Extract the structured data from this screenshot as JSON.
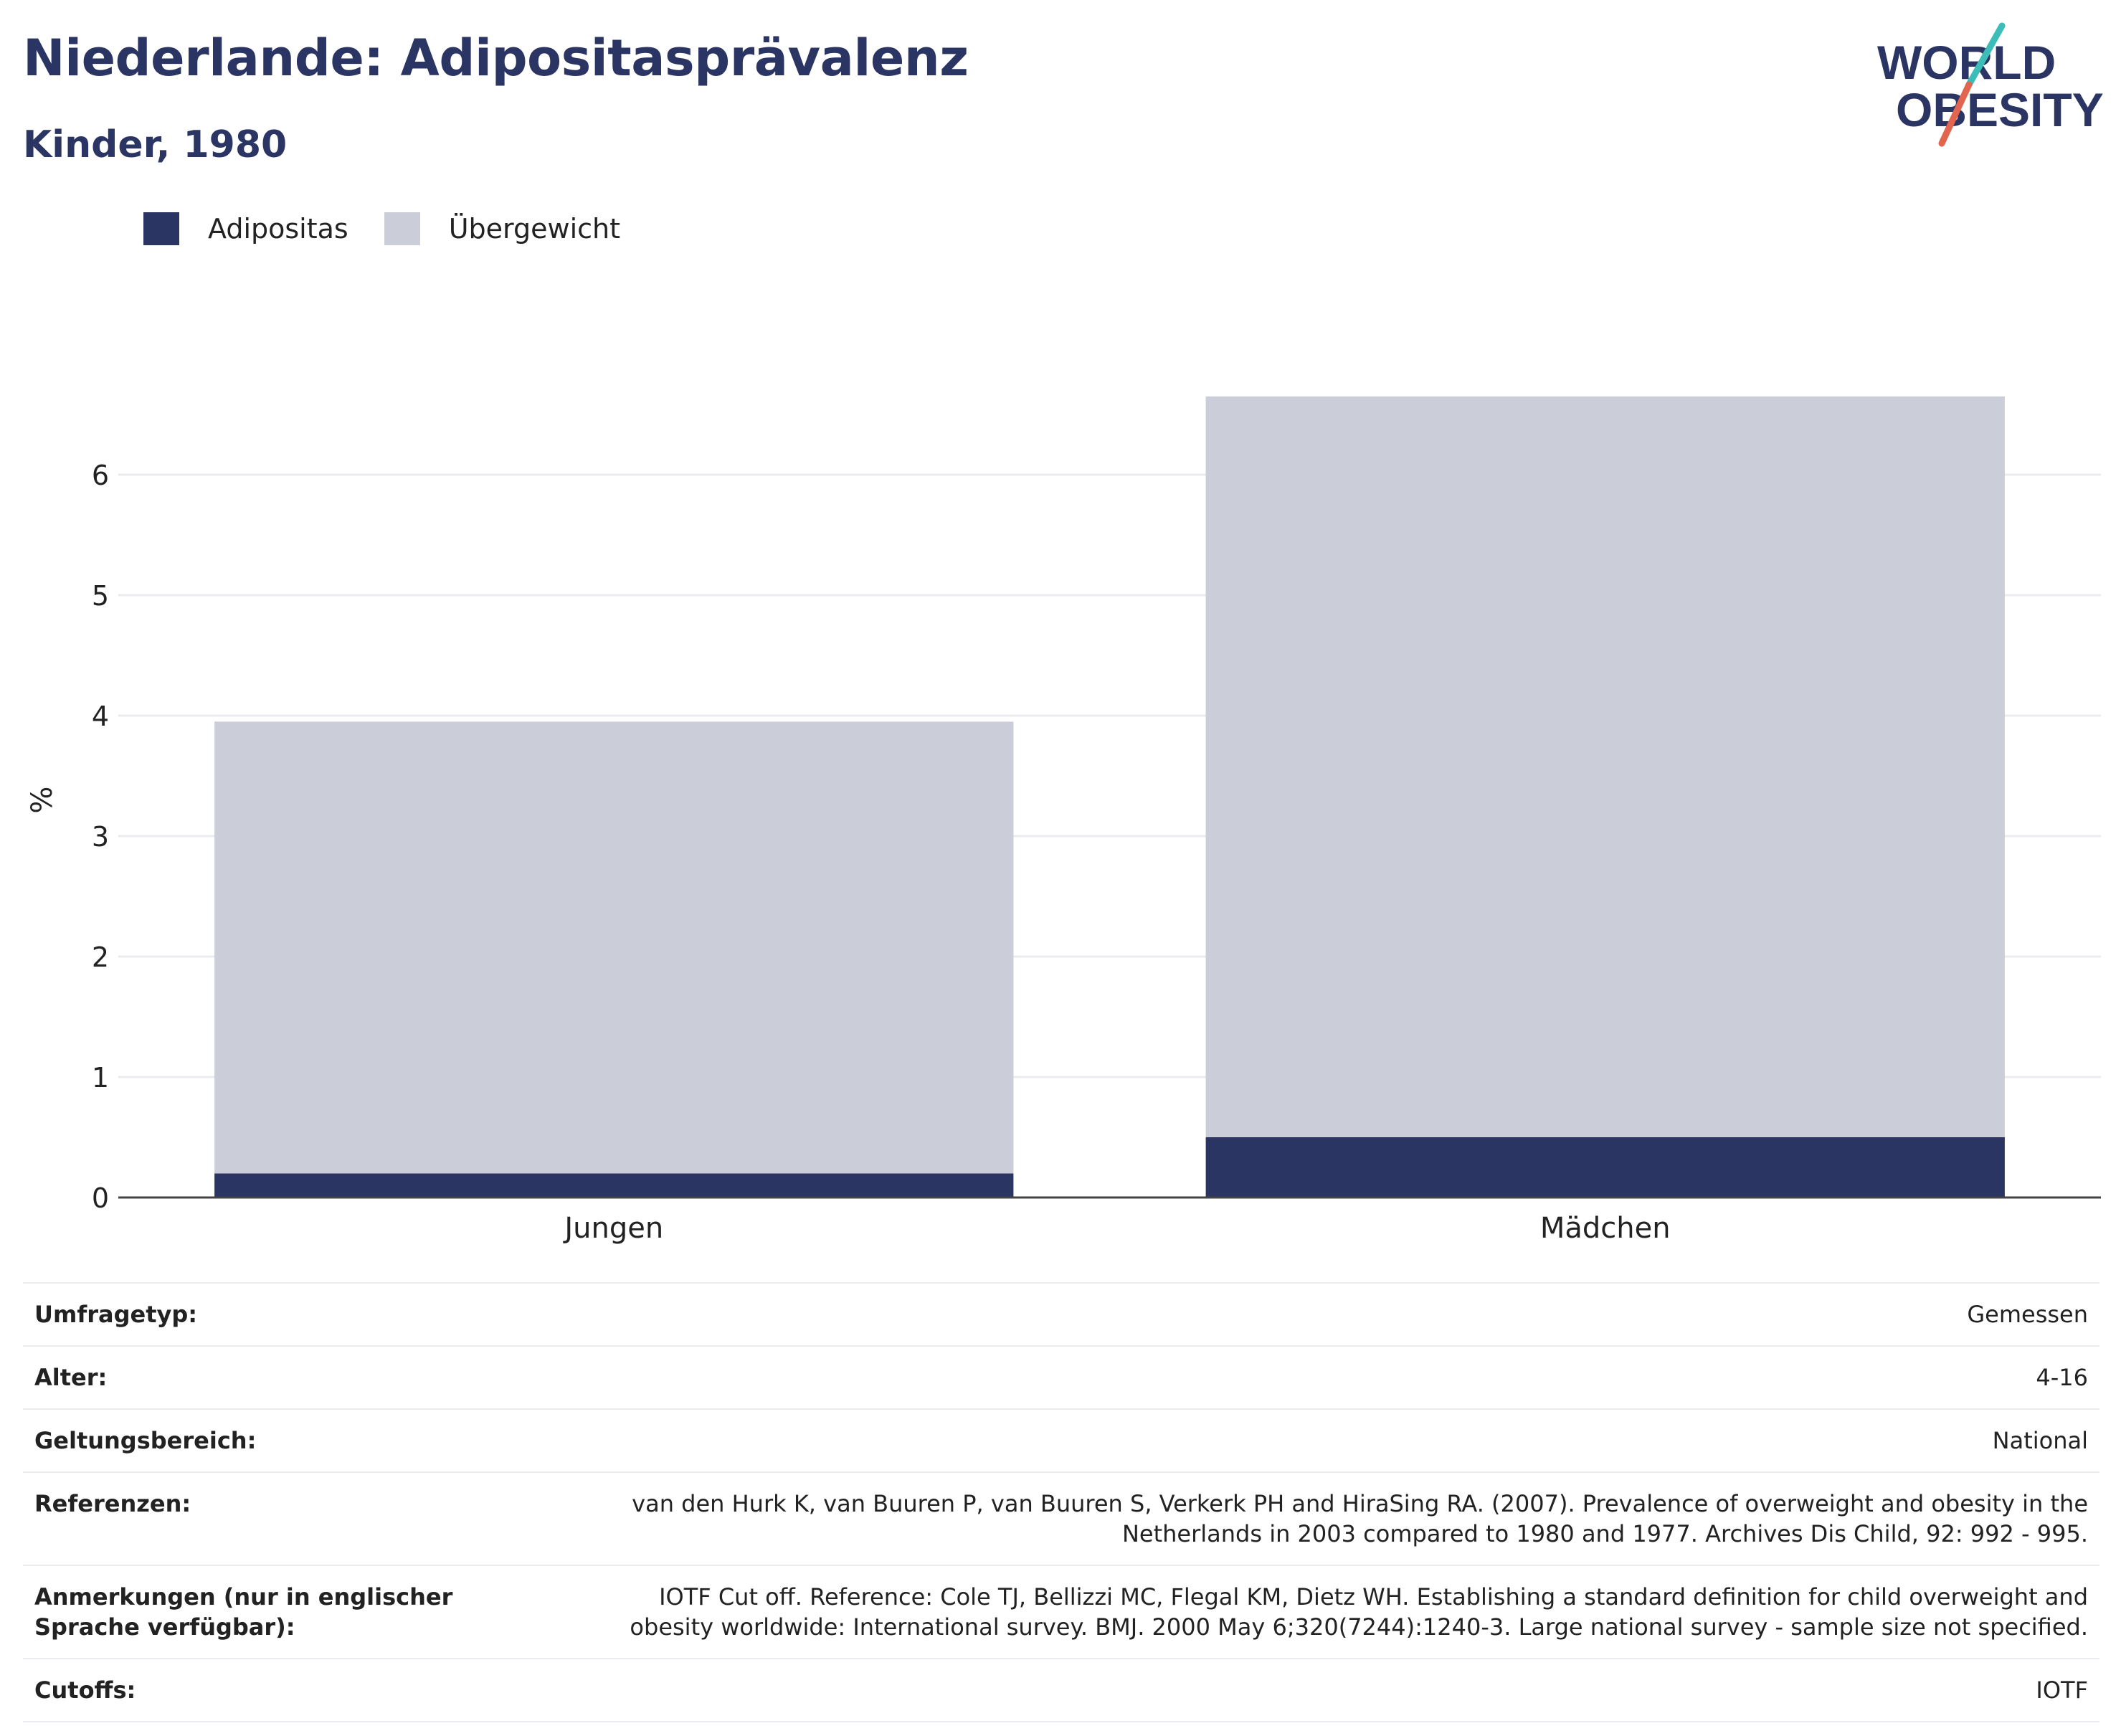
{
  "header": {
    "title": "Niederlande: Adipositasprävalenz",
    "subtitle": "Kinder, 1980"
  },
  "logo": {
    "line1": "WORLD",
    "line2": "OBESITY",
    "colors": {
      "text": "#2b3564",
      "slash_top": "#3dbdb8",
      "slash_bottom": "#e2654f"
    }
  },
  "colors": {
    "adipositas": "#2b3564",
    "uebergewicht": "#cbcdd9",
    "grid": "#ebebf0",
    "axis": "#444444"
  },
  "chart_data": {
    "type": "bar",
    "stacked": true,
    "categories": [
      "Jungen",
      "Mädchen"
    ],
    "series": [
      {
        "name": "Adipositas",
        "values": [
          0.2,
          0.5
        ]
      },
      {
        "name": "Übergewicht",
        "values": [
          3.75,
          6.15
        ]
      }
    ],
    "ylabel": "%",
    "xlabel": "",
    "ylim": [
      0,
      6.7
    ],
    "yticks": [
      0,
      1,
      2,
      3,
      4,
      5,
      6
    ],
    "grid": true,
    "legend_position": "top-left"
  },
  "info": [
    {
      "key": "Umfragetyp:",
      "value": "Gemessen"
    },
    {
      "key": "Alter:",
      "value": "4-16"
    },
    {
      "key": "Geltungsbereich:",
      "value": "National"
    },
    {
      "key": "Referenzen:",
      "value": "van den Hurk K, van Buuren P, van Buuren S, Verkerk PH and HiraSing RA. (2007). Prevalence of overweight and obesity in the Netherlands in 2003 compared to 1980 and 1977. Archives Dis Child, 92: 992 - 995."
    },
    {
      "key": "Anmerkungen (nur in englischer Sprache verfügbar):",
      "value": "IOTF Cut off. Reference: Cole TJ, Bellizzi MC, Flegal KM, Dietz WH. Establishing a standard definition for child overweight and obesity worldwide: International survey. BMJ. 2000 May 6;320(7244):1240-3. Large national survey - sample size not specified."
    },
    {
      "key": "Cutoffs:",
      "value": "IOTF"
    }
  ]
}
